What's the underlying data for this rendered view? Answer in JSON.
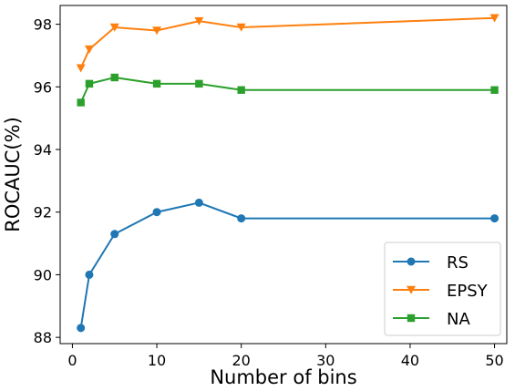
{
  "chart_data": {
    "type": "line",
    "title": "",
    "xlabel": "Number of bins",
    "ylabel": "ROCAUC(%)",
    "xlim": [
      -1.45,
      51.45
    ],
    "ylim": [
      87.8,
      98.6
    ],
    "xticks": [
      0,
      10,
      20,
      30,
      40,
      50
    ],
    "yticks": [
      88,
      90,
      92,
      94,
      96,
      98
    ],
    "x": [
      1,
      2,
      5,
      10,
      15,
      20,
      50
    ],
    "grid": false,
    "legend_position": "lower-right",
    "series": [
      {
        "name": "RS",
        "color": "#1f77b4",
        "marker": "circle",
        "values": [
          88.3,
          90.0,
          91.3,
          92.0,
          92.3,
          91.8,
          91.8
        ]
      },
      {
        "name": "EPSY",
        "color": "#ff7f0e",
        "marker": "triangle-down",
        "values": [
          96.6,
          97.2,
          97.9,
          97.8,
          98.1,
          97.9,
          98.2
        ]
      },
      {
        "name": "NA",
        "color": "#2ca02c",
        "marker": "square",
        "values": [
          95.5,
          96.1,
          96.3,
          96.1,
          96.1,
          95.9,
          95.9
        ]
      }
    ]
  }
}
